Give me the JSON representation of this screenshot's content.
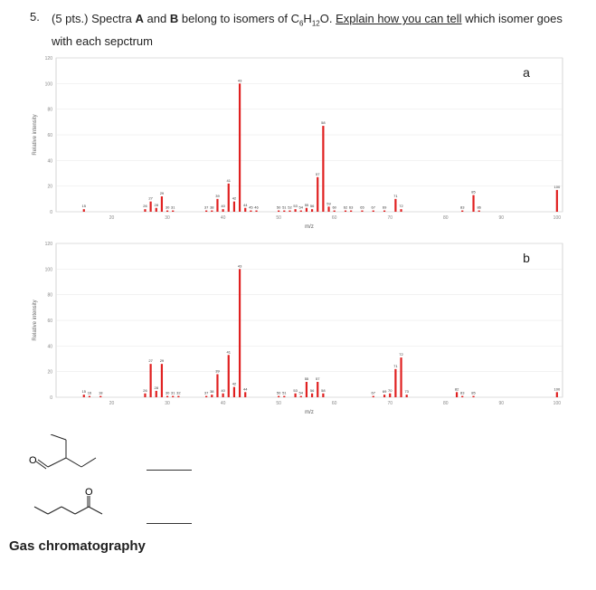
{
  "question": {
    "number": "5.",
    "points": "(5 pts.)",
    "text_pre": "Spectra",
    "a": "A",
    "and": "and",
    "b": "B",
    "text_mid": "belong to isomers of C",
    "sub6": "6",
    "h": "H",
    "sub12": "12",
    "o": "O.",
    "explain": "Explain how you can tell",
    "text_post": "which isomer goes with each sepctrum"
  },
  "footer": {
    "gc_label": "Gas chromatography"
  },
  "chart_data": [
    {
      "type": "bar",
      "corner_label": "a",
      "xlabel": "m/z",
      "ylabel": "Relative intensity",
      "xlim": [
        10,
        101
      ],
      "ylim": [
        0,
        120
      ],
      "yticks": [
        0,
        20,
        40,
        60,
        80,
        100,
        120
      ],
      "xticks": [
        20,
        30,
        40,
        50,
        60,
        70,
        80,
        90,
        100
      ],
      "color": "#e02020",
      "peaks": [
        {
          "mz": 15,
          "y": 2
        },
        {
          "mz": 26,
          "y": 2
        },
        {
          "mz": 27,
          "y": 8
        },
        {
          "mz": 28,
          "y": 3
        },
        {
          "mz": 29,
          "y": 12
        },
        {
          "mz": 30,
          "y": 1
        },
        {
          "mz": 31,
          "y": 1
        },
        {
          "mz": 37,
          "y": 1
        },
        {
          "mz": 38,
          "y": 1
        },
        {
          "mz": 39,
          "y": 10
        },
        {
          "mz": 40,
          "y": 2
        },
        {
          "mz": 41,
          "y": 22
        },
        {
          "mz": 42,
          "y": 8
        },
        {
          "mz": 43,
          "y": 100
        },
        {
          "mz": 44,
          "y": 3
        },
        {
          "mz": 45,
          "y": 1
        },
        {
          "mz": 46,
          "y": 1
        },
        {
          "mz": 50,
          "y": 1
        },
        {
          "mz": 51,
          "y": 1
        },
        {
          "mz": 52,
          "y": 1
        },
        {
          "mz": 53,
          "y": 2
        },
        {
          "mz": 54,
          "y": 1
        },
        {
          "mz": 55,
          "y": 3
        },
        {
          "mz": 56,
          "y": 2
        },
        {
          "mz": 57,
          "y": 27
        },
        {
          "mz": 58,
          "y": 67
        },
        {
          "mz": 59,
          "y": 4
        },
        {
          "mz": 60,
          "y": 1
        },
        {
          "mz": 62,
          "y": 1
        },
        {
          "mz": 63,
          "y": 1
        },
        {
          "mz": 65,
          "y": 1
        },
        {
          "mz": 67,
          "y": 1
        },
        {
          "mz": 69,
          "y": 1
        },
        {
          "mz": 71,
          "y": 10
        },
        {
          "mz": 72,
          "y": 2
        },
        {
          "mz": 83,
          "y": 1
        },
        {
          "mz": 85,
          "y": 13
        },
        {
          "mz": 86,
          "y": 1
        },
        {
          "mz": 100,
          "y": 17
        }
      ]
    },
    {
      "type": "bar",
      "corner_label": "b",
      "xlabel": "m/z",
      "ylabel": "Relative intensity",
      "xlim": [
        10,
        101
      ],
      "ylim": [
        0,
        120
      ],
      "yticks": [
        0,
        20,
        40,
        60,
        80,
        100,
        120
      ],
      "xticks": [
        20,
        30,
        40,
        50,
        60,
        70,
        80,
        90,
        100
      ],
      "color": "#e02020",
      "peaks": [
        {
          "mz": 15,
          "y": 2
        },
        {
          "mz": 16,
          "y": 1
        },
        {
          "mz": 18,
          "y": 1
        },
        {
          "mz": 26,
          "y": 3
        },
        {
          "mz": 27,
          "y": 26
        },
        {
          "mz": 28,
          "y": 5
        },
        {
          "mz": 29,
          "y": 26
        },
        {
          "mz": 30,
          "y": 1
        },
        {
          "mz": 31,
          "y": 1
        },
        {
          "mz": 32,
          "y": 1
        },
        {
          "mz": 37,
          "y": 1
        },
        {
          "mz": 38,
          "y": 2
        },
        {
          "mz": 39,
          "y": 18
        },
        {
          "mz": 40,
          "y": 3
        },
        {
          "mz": 41,
          "y": 33
        },
        {
          "mz": 42,
          "y": 8
        },
        {
          "mz": 43,
          "y": 100
        },
        {
          "mz": 44,
          "y": 4
        },
        {
          "mz": 50,
          "y": 1
        },
        {
          "mz": 51,
          "y": 1
        },
        {
          "mz": 53,
          "y": 3
        },
        {
          "mz": 54,
          "y": 1
        },
        {
          "mz": 55,
          "y": 12
        },
        {
          "mz": 56,
          "y": 3
        },
        {
          "mz": 57,
          "y": 12
        },
        {
          "mz": 58,
          "y": 3
        },
        {
          "mz": 67,
          "y": 1
        },
        {
          "mz": 69,
          "y": 2
        },
        {
          "mz": 70,
          "y": 3
        },
        {
          "mz": 71,
          "y": 22
        },
        {
          "mz": 72,
          "y": 31
        },
        {
          "mz": 73,
          "y": 2
        },
        {
          "mz": 82,
          "y": 4
        },
        {
          "mz": 83,
          "y": 1
        },
        {
          "mz": 85,
          "y": 1
        },
        {
          "mz": 100,
          "y": 4
        }
      ]
    }
  ]
}
